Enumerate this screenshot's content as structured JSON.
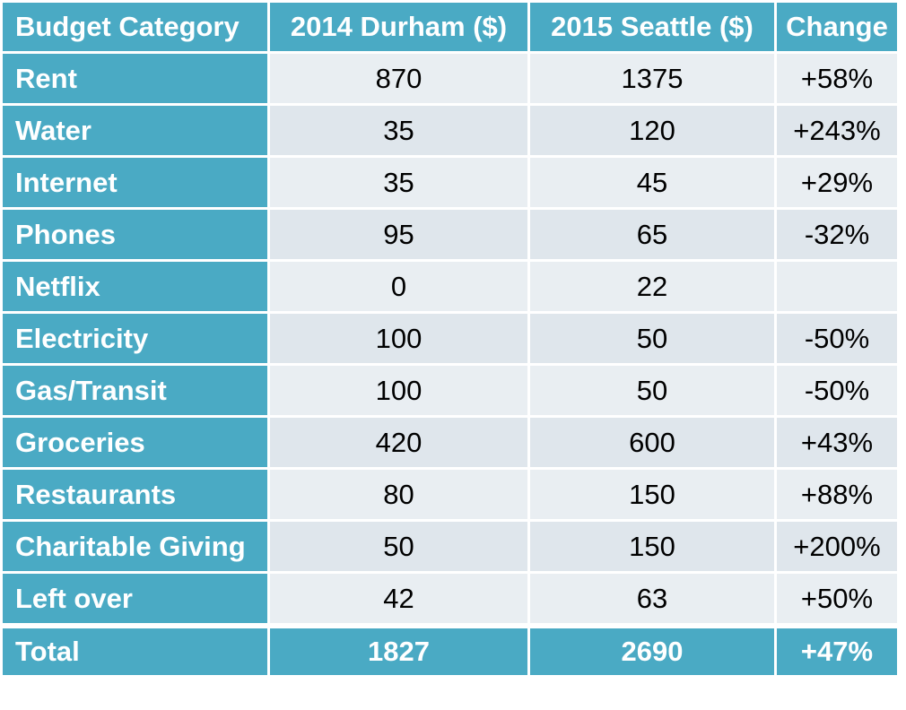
{
  "table": {
    "headers": [
      "Budget Category",
      "2014 Durham ($)",
      "2015 Seattle ($)",
      "Change"
    ],
    "rows": [
      {
        "category": "Rent",
        "durham": "870",
        "seattle": "1375",
        "change": "+58%"
      },
      {
        "category": "Water",
        "durham": "35",
        "seattle": "120",
        "change": "+243%"
      },
      {
        "category": "Internet",
        "durham": "35",
        "seattle": "45",
        "change": "+29%"
      },
      {
        "category": "Phones",
        "durham": "95",
        "seattle": "65",
        "change": "-32%"
      },
      {
        "category": "Netflix",
        "durham": "0",
        "seattle": "22",
        "change": ""
      },
      {
        "category": "Electricity",
        "durham": "100",
        "seattle": "50",
        "change": "-50%"
      },
      {
        "category": "Gas/Transit",
        "durham": "100",
        "seattle": "50",
        "change": "-50%"
      },
      {
        "category": "Groceries",
        "durham": "420",
        "seattle": "600",
        "change": "+43%"
      },
      {
        "category": "Restaurants",
        "durham": "80",
        "seattle": "150",
        "change": "+88%"
      },
      {
        "category": "Charitable Giving",
        "durham": "50",
        "seattle": "150",
        "change": "+200%"
      },
      {
        "category": "Left over",
        "durham": "42",
        "seattle": "63",
        "change": "+50%"
      }
    ],
    "total": {
      "category": "Total",
      "durham": "1827",
      "seattle": "2690",
      "change": "+47%"
    }
  },
  "colors": {
    "header_bg": "#4aaac4",
    "cell_bg": "#e9eef2",
    "header_text": "#ffffff",
    "cell_text": "#000000"
  }
}
